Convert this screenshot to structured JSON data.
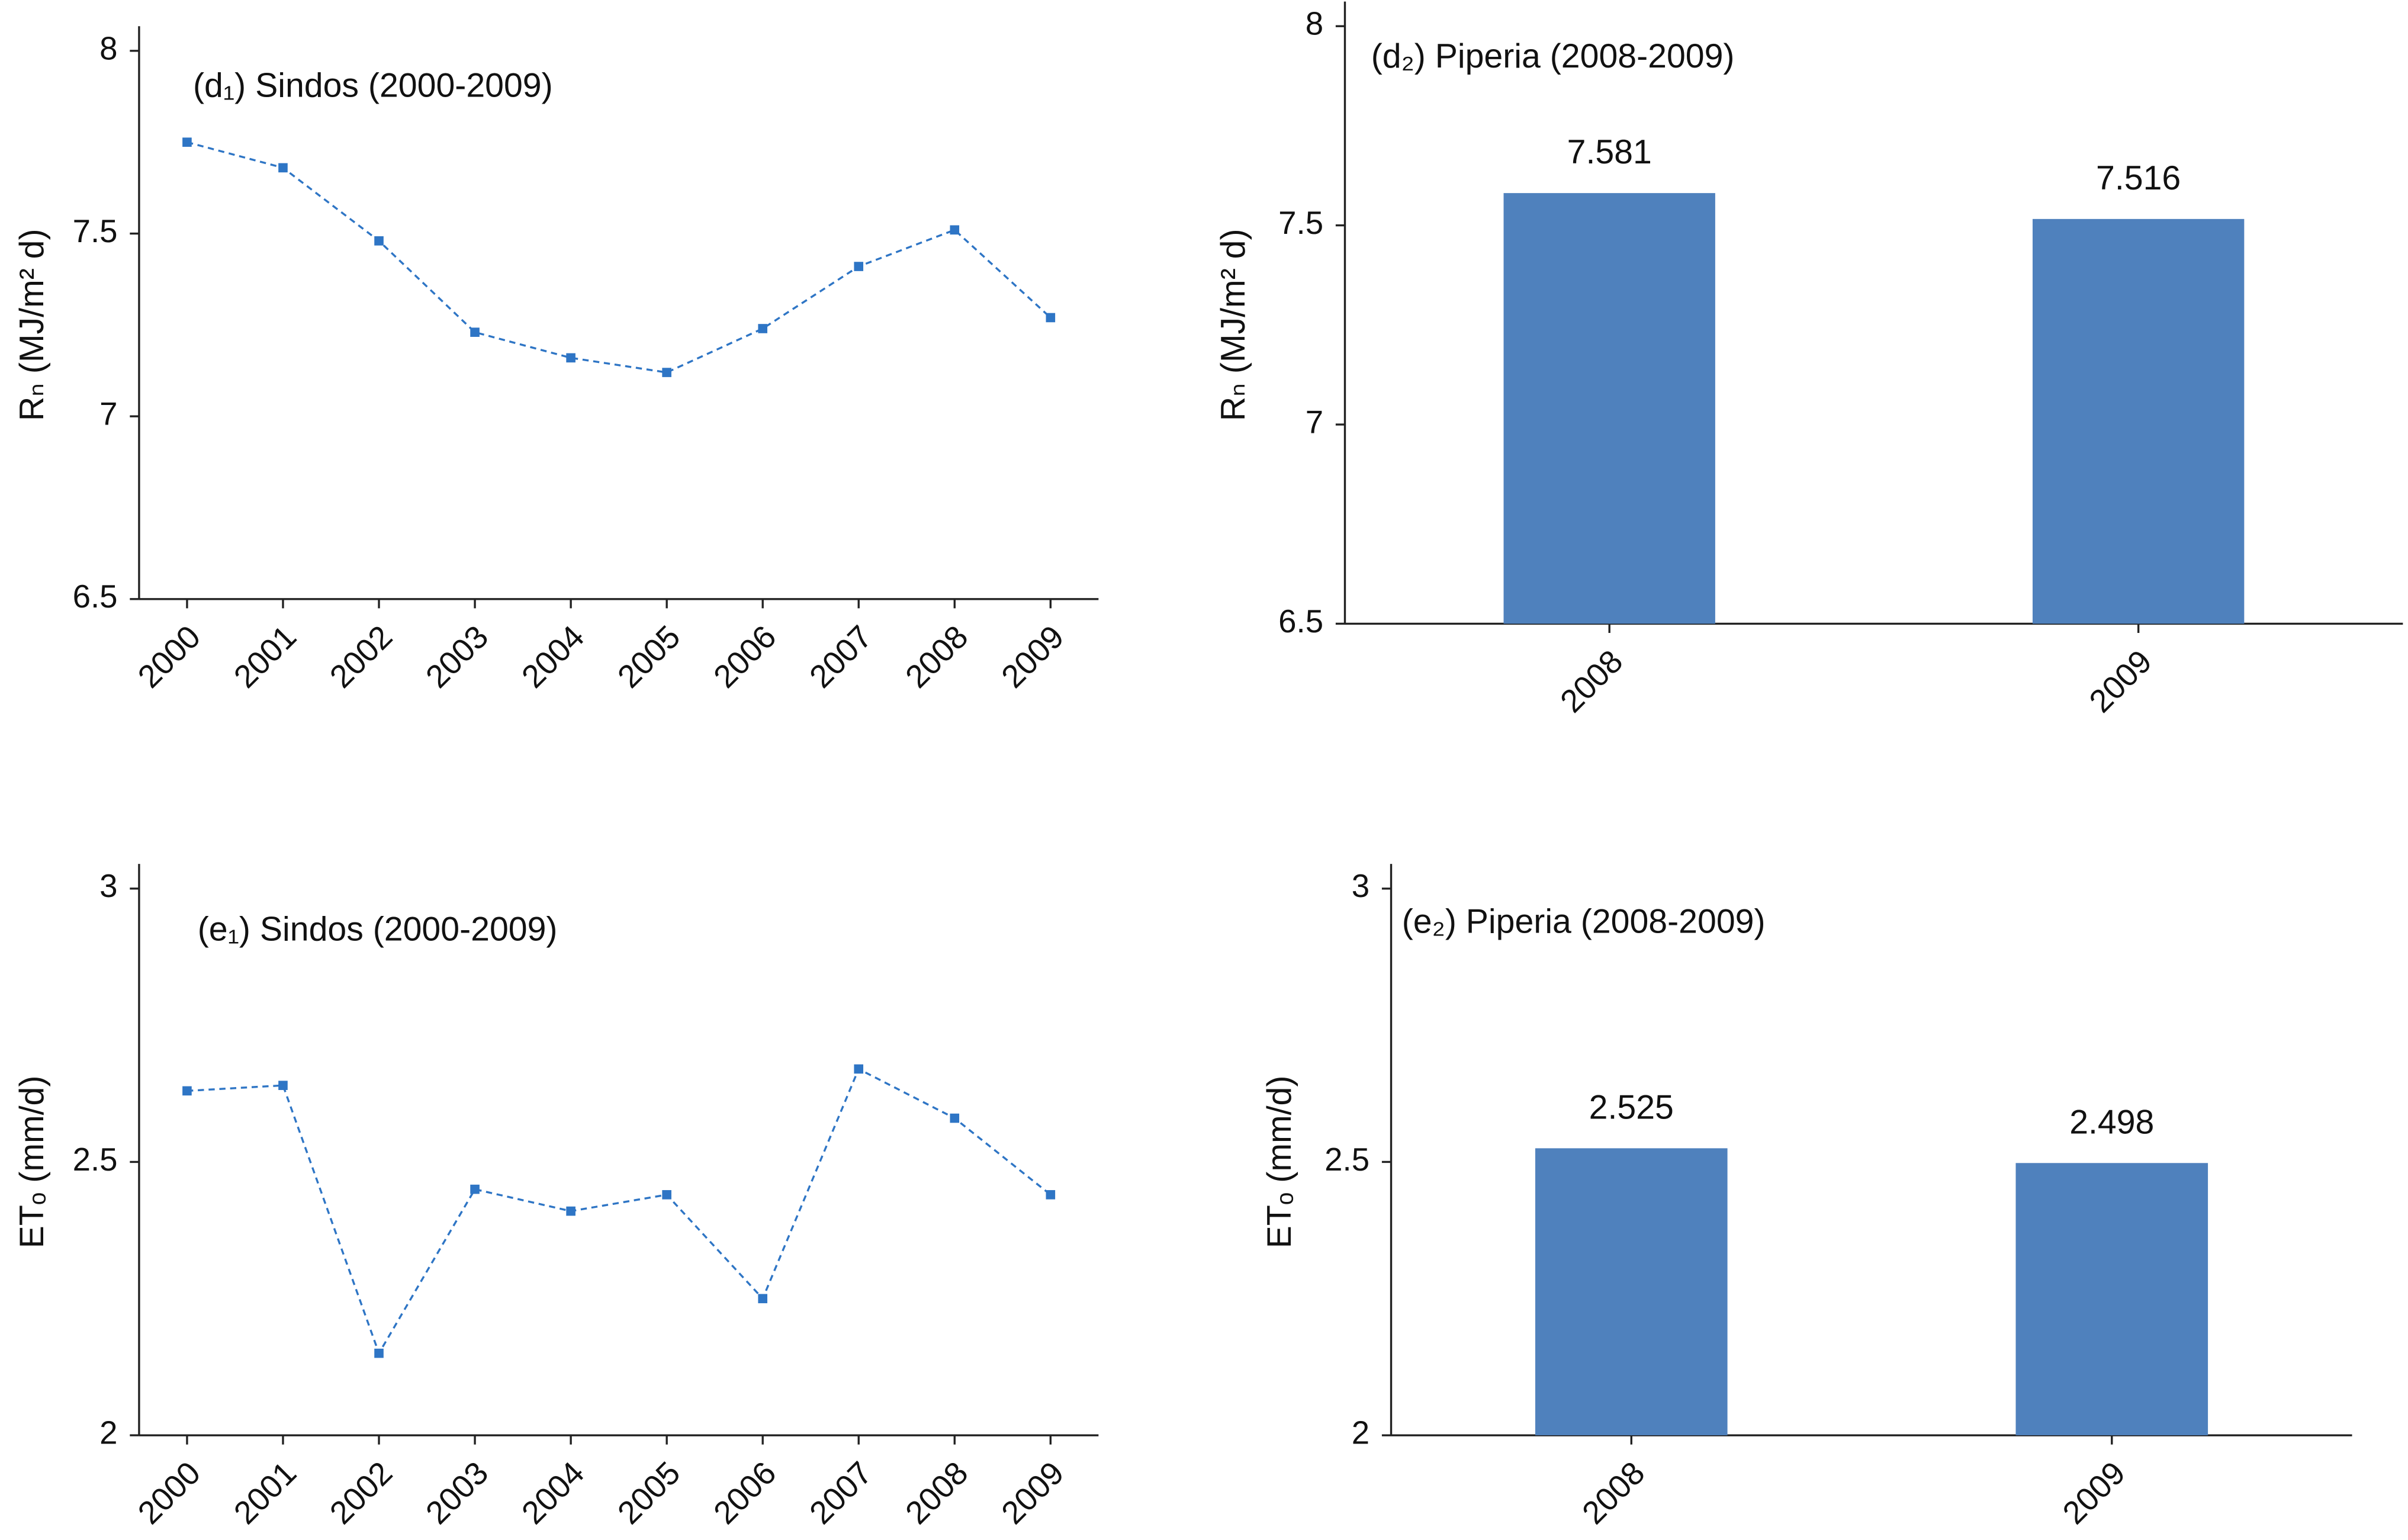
{
  "chart_data": [
    {
      "type": "line",
      "title": "(d₁) Sindos (2000-2009)",
      "y_label": "Rₙ (MJ/m² d)",
      "categories": [
        "2000",
        "2001",
        "2002",
        "2003",
        "2004",
        "2005",
        "2006",
        "2007",
        "2008",
        "2009"
      ],
      "series": [
        {
          "name": "Sindos",
          "color": "#2e75c5",
          "values": [
            7.75,
            7.68,
            7.48,
            7.23,
            7.16,
            7.12,
            7.24,
            7.41,
            7.51,
            7.27
          ]
        }
      ],
      "ylim": [
        6.5,
        8
      ],
      "yticks": [
        6.5,
        7,
        7.5,
        8
      ]
    },
    {
      "type": "bar",
      "title": "(d₂) Piperia (2008-2009)",
      "y_label": "Rₙ (MJ/m² d)",
      "categories": [
        "2008",
        "2009"
      ],
      "values": [
        7.581,
        7.516
      ],
      "color": "#4f81bd",
      "ylim": [
        6.5,
        8
      ],
      "yticks": [
        6.5,
        7,
        7.5,
        8
      ]
    },
    {
      "type": "line",
      "title": "(e₁) Sindos (2000-2009)",
      "y_label": "ETₒ (mm/d)",
      "categories": [
        "2000",
        "2001",
        "2002",
        "2003",
        "2004",
        "2005",
        "2006",
        "2007",
        "2008",
        "2009"
      ],
      "series": [
        {
          "name": "Sindos",
          "color": "#2e75c5",
          "values": [
            2.63,
            2.64,
            2.15,
            2.45,
            2.41,
            2.44,
            2.25,
            2.67,
            2.58,
            2.44
          ]
        }
      ],
      "ylim": [
        2,
        3
      ],
      "yticks": [
        2,
        2.5,
        3
      ]
    },
    {
      "type": "bar",
      "title": "(e₂) Piperia (2008-2009)",
      "y_label": "ETₒ (mm/d)",
      "categories": [
        "2008",
        "2009"
      ],
      "values": [
        2.525,
        2.498
      ],
      "color": "#4f81bd",
      "ylim": [
        2,
        3
      ],
      "yticks": [
        2,
        2.5,
        3
      ]
    }
  ]
}
